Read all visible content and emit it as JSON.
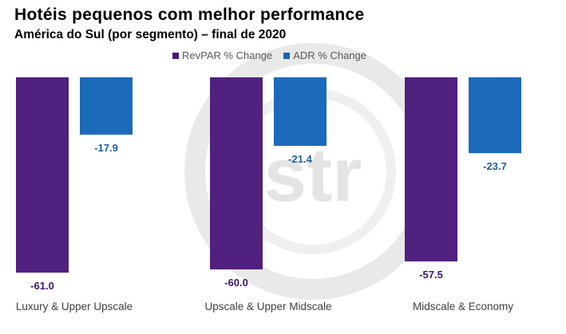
{
  "header": {
    "title": "Hotéis pequenos com melhor performance",
    "subtitle": "América do Sul (por segmento) – final de 2020"
  },
  "watermark": {
    "text": "str"
  },
  "colors": {
    "revpar": "#4a1a7a",
    "adr": "#1565b8",
    "revpar_label": "#3e1769",
    "adr_label": "#1f5fa3",
    "category_text": "#404040",
    "watermark": "#e6e6e6"
  },
  "chart_data": {
    "type": "bar",
    "categories": [
      "Luxury & Upper Upscale",
      "Upscale & Upper Midscale",
      "Midscale & Economy"
    ],
    "series": [
      {
        "name": "RevPAR % Change",
        "values": [
          -61.0,
          -60.0,
          -57.5
        ],
        "labels": [
          "-61.0",
          "-60.0",
          "-57.5"
        ]
      },
      {
        "name": "ADR % Change",
        "values": [
          -17.9,
          -21.4,
          -23.7
        ],
        "labels": [
          "-17.9",
          "-21.4",
          "-23.7"
        ]
      }
    ],
    "ylim": [
      -61.0,
      0
    ],
    "grid": false,
    "legend": "top-center"
  }
}
